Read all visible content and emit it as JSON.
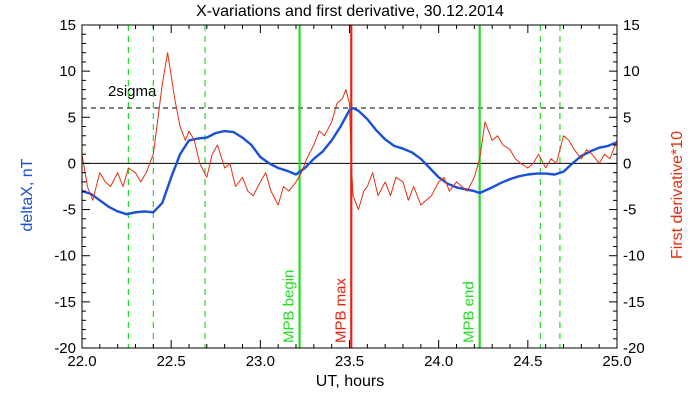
{
  "chart_data": {
    "type": "line",
    "title": "X-variations and first derivative, 30.12.2014",
    "xlabel": "UT, hours",
    "ylabel_left": "deltaX, nT",
    "ylabel_right": "First derivative*10",
    "xlim": [
      22.0,
      25.0
    ],
    "ylim": [
      -20,
      15
    ],
    "x_ticks": [
      "22.0",
      "22.5",
      "23.0",
      "23.5",
      "24.0",
      "24.5",
      "25.0"
    ],
    "y_ticks": [
      "15",
      "10",
      "5",
      "0",
      "-5",
      "-10",
      "-15",
      "-20"
    ],
    "y_tick_values": [
      15,
      10,
      5,
      0,
      -5,
      -10,
      -15,
      -20
    ],
    "x_tick_values": [
      22.0,
      22.5,
      23.0,
      23.5,
      24.0,
      24.5,
      25.0
    ],
    "colors": {
      "deltaX": "#1a50d8",
      "derivative": "#e03010",
      "begin_end": "#22dd22",
      "max": "#e82010",
      "axis": "#000000"
    },
    "threshold": {
      "label": "2sigma",
      "y": 6.0
    },
    "zero_line": 0,
    "markers": [
      {
        "label": "MPB begin",
        "x": 23.22,
        "color": "#22dd22"
      },
      {
        "label": "MPB max",
        "x": 23.51,
        "color": "#e82010"
      },
      {
        "label": "MPB end",
        "x": 24.23,
        "color": "#22dd22"
      }
    ],
    "dashed_verticals": [
      22.26,
      22.4,
      22.69,
      24.57,
      24.68
    ],
    "series": [
      {
        "name": "deltaX, nT",
        "x": [
          22.0,
          22.05,
          22.1,
          22.15,
          22.2,
          22.25,
          22.3,
          22.35,
          22.4,
          22.45,
          22.5,
          22.55,
          22.6,
          22.65,
          22.7,
          22.75,
          22.8,
          22.85,
          22.9,
          22.95,
          23.0,
          23.05,
          23.1,
          23.15,
          23.2,
          23.25,
          23.3,
          23.35,
          23.4,
          23.45,
          23.5,
          23.52,
          23.55,
          23.6,
          23.65,
          23.7,
          23.75,
          23.8,
          23.85,
          23.9,
          23.95,
          24.0,
          24.05,
          24.1,
          24.15,
          24.2,
          24.23,
          24.3,
          24.35,
          24.4,
          24.45,
          24.5,
          24.55,
          24.6,
          24.65,
          24.7,
          24.75,
          24.8,
          24.85,
          24.9,
          24.95,
          25.0
        ],
        "values": [
          -3.0,
          -3.3,
          -4.0,
          -4.7,
          -5.2,
          -5.5,
          -5.3,
          -5.2,
          -5.3,
          -4.3,
          -1.5,
          1.0,
          2.5,
          2.7,
          2.8,
          3.3,
          3.5,
          3.4,
          2.8,
          2.0,
          0.7,
          0.0,
          -0.5,
          -0.8,
          -1.2,
          -0.5,
          0.5,
          1.3,
          2.5,
          4.0,
          5.8,
          6.0,
          5.7,
          4.8,
          3.6,
          2.6,
          1.9,
          1.6,
          1.2,
          0.5,
          -0.5,
          -1.5,
          -2.2,
          -2.6,
          -2.8,
          -3.0,
          -3.2,
          -2.6,
          -2.1,
          -1.7,
          -1.4,
          -1.2,
          -1.1,
          -1.1,
          -1.2,
          -0.9,
          0.0,
          0.8,
          1.3,
          1.7,
          1.9,
          2.3
        ]
      },
      {
        "name": "First derivative*10",
        "x": [
          22.0,
          22.03,
          22.06,
          22.1,
          22.13,
          22.16,
          22.2,
          22.23,
          22.26,
          22.3,
          22.33,
          22.36,
          22.4,
          22.42,
          22.45,
          22.48,
          22.5,
          22.52,
          22.55,
          22.58,
          22.6,
          22.63,
          22.66,
          22.7,
          22.73,
          22.76,
          22.8,
          22.83,
          22.86,
          22.9,
          22.93,
          22.96,
          23.0,
          23.03,
          23.06,
          23.1,
          23.13,
          23.16,
          23.2,
          23.23,
          23.26,
          23.3,
          23.33,
          23.36,
          23.4,
          23.43,
          23.46,
          23.48,
          23.5,
          23.51,
          23.52,
          23.55,
          23.58,
          23.6,
          23.63,
          23.66,
          23.7,
          23.73,
          23.76,
          23.8,
          23.83,
          23.86,
          23.9,
          23.93,
          23.96,
          24.0,
          24.03,
          24.06,
          24.1,
          24.13,
          24.16,
          24.2,
          24.23,
          24.26,
          24.3,
          24.33,
          24.36,
          24.4,
          24.43,
          24.46,
          24.5,
          24.53,
          24.56,
          24.6,
          24.63,
          24.66,
          24.7,
          24.73,
          24.76,
          24.8,
          24.83,
          24.86,
          24.9,
          24.93,
          24.96,
          25.0
        ],
        "values": [
          1.0,
          -2.5,
          -4.0,
          -1.0,
          -2.0,
          -2.5,
          -1.0,
          -2.5,
          -0.5,
          -1.0,
          -2.0,
          -1.0,
          1.0,
          4.0,
          8.5,
          12.0,
          9.5,
          7.0,
          4.0,
          2.5,
          3.5,
          2.5,
          0.0,
          -1.5,
          1.0,
          2.0,
          -0.5,
          0.0,
          -2.5,
          -1.5,
          -3.0,
          -3.5,
          -2.0,
          -1.0,
          -3.0,
          -4.5,
          -2.5,
          -3.0,
          -2.0,
          -1.0,
          0.5,
          2.0,
          3.5,
          3.0,
          4.5,
          6.5,
          7.0,
          8.0,
          6.5,
          0.0,
          -3.5,
          -5.0,
          -3.0,
          -2.5,
          -1.0,
          -3.5,
          -2.0,
          -3.5,
          -1.5,
          -2.0,
          -4.0,
          -2.5,
          -4.5,
          -4.0,
          -3.5,
          -2.0,
          -1.5,
          -3.0,
          -2.0,
          -2.5,
          -3.0,
          -1.5,
          0.5,
          4.5,
          2.5,
          3.0,
          2.0,
          1.5,
          0.5,
          0.0,
          -0.5,
          0.0,
          1.0,
          -0.5,
          0.5,
          0.0,
          3.0,
          2.5,
          1.5,
          0.5,
          1.5,
          1.0,
          0.0,
          1.0,
          0.5,
          2.5
        ]
      }
    ]
  }
}
